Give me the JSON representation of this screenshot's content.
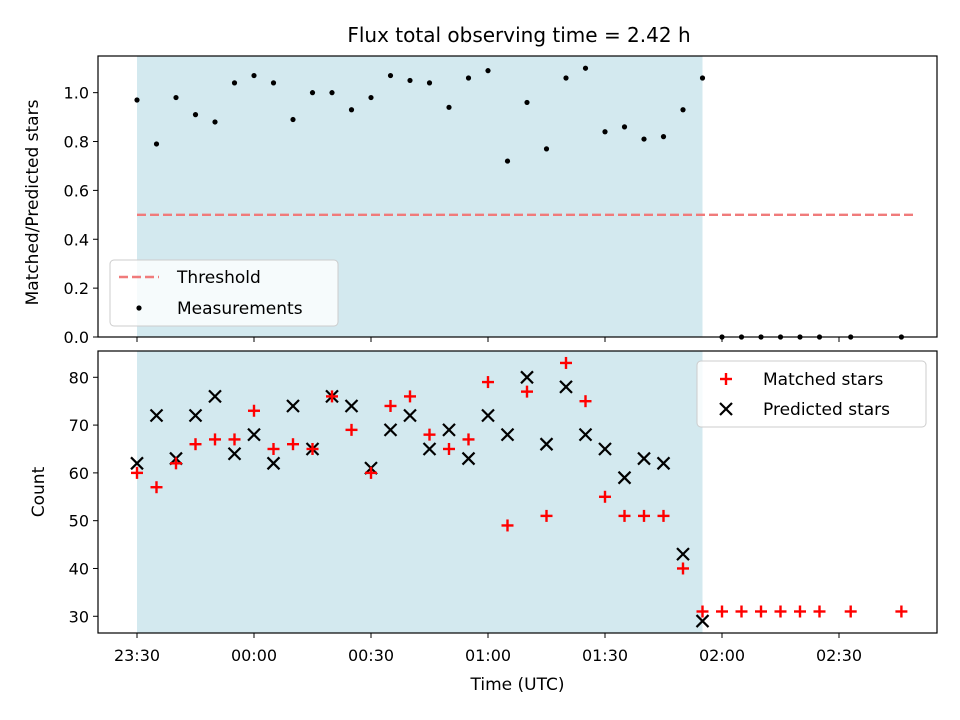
{
  "chart_data": {
    "type": "scatter",
    "title": "Flux total observing time = 2.42 h",
    "xlabel": "Time (UTC)",
    "x_tick_labels": [
      "23:30",
      "00:00",
      "00:30",
      "01:00",
      "01:30",
      "02:00",
      "02:30"
    ],
    "colors": {
      "shade": "#d3e9ef",
      "threshold": "#f07b7b",
      "matched": "#ff0000",
      "predicted": "#000000",
      "measurement": "#000000"
    },
    "top": {
      "ylabel": "Matched/Predicted stars",
      "ylim": [
        0,
        1.15
      ],
      "y_ticks": [
        "0.0",
        "0.2",
        "0.4",
        "0.6",
        "0.8",
        "1.0"
      ],
      "legend": [
        "Threshold",
        "Measurements"
      ],
      "legend_position": "lower-left",
      "threshold": 0.5,
      "threshold_start": "23:30",
      "threshold_end": "02:50",
      "measurements": [
        {
          "t": "23:30",
          "v": 0.97
        },
        {
          "t": "23:35",
          "v": 0.79
        },
        {
          "t": "23:40",
          "v": 0.98
        },
        {
          "t": "23:45",
          "v": 0.91
        },
        {
          "t": "23:50",
          "v": 0.88
        },
        {
          "t": "23:55",
          "v": 1.04
        },
        {
          "t": "00:00",
          "v": 1.07
        },
        {
          "t": "00:05",
          "v": 1.04
        },
        {
          "t": "00:10",
          "v": 0.89
        },
        {
          "t": "00:15",
          "v": 1.0
        },
        {
          "t": "00:20",
          "v": 1.0
        },
        {
          "t": "00:25",
          "v": 0.93
        },
        {
          "t": "00:30",
          "v": 0.98
        },
        {
          "t": "00:35",
          "v": 1.07
        },
        {
          "t": "00:40",
          "v": 1.05
        },
        {
          "t": "00:45",
          "v": 1.04
        },
        {
          "t": "00:50",
          "v": 0.94
        },
        {
          "t": "00:55",
          "v": 1.06
        },
        {
          "t": "01:00",
          "v": 1.09
        },
        {
          "t": "01:05",
          "v": 0.72
        },
        {
          "t": "01:10",
          "v": 0.96
        },
        {
          "t": "01:15",
          "v": 0.77
        },
        {
          "t": "01:20",
          "v": 1.06
        },
        {
          "t": "01:25",
          "v": 1.1
        },
        {
          "t": "01:30",
          "v": 0.84
        },
        {
          "t": "01:35",
          "v": 0.86
        },
        {
          "t": "01:40",
          "v": 0.81
        },
        {
          "t": "01:45",
          "v": 0.82
        },
        {
          "t": "01:50",
          "v": 0.93
        },
        {
          "t": "01:55",
          "v": 1.06
        },
        {
          "t": "02:00",
          "v": 0.0
        },
        {
          "t": "02:05",
          "v": 0.0
        },
        {
          "t": "02:10",
          "v": 0.0
        },
        {
          "t": "02:15",
          "v": 0.0
        },
        {
          "t": "02:20",
          "v": 0.0
        },
        {
          "t": "02:25",
          "v": 0.0
        },
        {
          "t": "02:33",
          "v": 0.0
        },
        {
          "t": "02:46",
          "v": 0.0
        }
      ]
    },
    "bottom": {
      "ylabel": "Count",
      "ylim": [
        26.5,
        85.5
      ],
      "y_ticks": [
        "30",
        "40",
        "50",
        "60",
        "70",
        "80"
      ],
      "legend": [
        "Matched stars",
        "Predicted stars"
      ],
      "legend_position": "upper-right",
      "matched": [
        {
          "t": "23:30",
          "v": 60
        },
        {
          "t": "23:35",
          "v": 57
        },
        {
          "t": "23:40",
          "v": 62
        },
        {
          "t": "23:45",
          "v": 66
        },
        {
          "t": "23:50",
          "v": 67
        },
        {
          "t": "23:55",
          "v": 67
        },
        {
          "t": "00:00",
          "v": 73
        },
        {
          "t": "00:05",
          "v": 65
        },
        {
          "t": "00:10",
          "v": 66
        },
        {
          "t": "00:15",
          "v": 65
        },
        {
          "t": "00:20",
          "v": 76
        },
        {
          "t": "00:25",
          "v": 69
        },
        {
          "t": "00:30",
          "v": 60
        },
        {
          "t": "00:35",
          "v": 74
        },
        {
          "t": "00:40",
          "v": 76
        },
        {
          "t": "00:45",
          "v": 68
        },
        {
          "t": "00:50",
          "v": 65
        },
        {
          "t": "00:55",
          "v": 67
        },
        {
          "t": "01:00",
          "v": 79
        },
        {
          "t": "01:05",
          "v": 49
        },
        {
          "t": "01:10",
          "v": 77
        },
        {
          "t": "01:15",
          "v": 51
        },
        {
          "t": "01:20",
          "v": 83
        },
        {
          "t": "01:25",
          "v": 75
        },
        {
          "t": "01:30",
          "v": 55
        },
        {
          "t": "01:35",
          "v": 51
        },
        {
          "t": "01:40",
          "v": 51
        },
        {
          "t": "01:45",
          "v": 51
        },
        {
          "t": "01:50",
          "v": 40
        },
        {
          "t": "01:55",
          "v": 31
        },
        {
          "t": "02:00",
          "v": 31
        },
        {
          "t": "02:05",
          "v": 31
        },
        {
          "t": "02:10",
          "v": 31
        },
        {
          "t": "02:15",
          "v": 31
        },
        {
          "t": "02:20",
          "v": 31
        },
        {
          "t": "02:25",
          "v": 31
        },
        {
          "t": "02:33",
          "v": 31
        },
        {
          "t": "02:46",
          "v": 31
        }
      ],
      "predicted": [
        {
          "t": "23:30",
          "v": 62
        },
        {
          "t": "23:35",
          "v": 72
        },
        {
          "t": "23:40",
          "v": 63
        },
        {
          "t": "23:45",
          "v": 72
        },
        {
          "t": "23:50",
          "v": 76
        },
        {
          "t": "23:55",
          "v": 64
        },
        {
          "t": "00:00",
          "v": 68
        },
        {
          "t": "00:05",
          "v": 62
        },
        {
          "t": "00:10",
          "v": 74
        },
        {
          "t": "00:15",
          "v": 65
        },
        {
          "t": "00:20",
          "v": 76
        },
        {
          "t": "00:25",
          "v": 74
        },
        {
          "t": "00:30",
          "v": 61
        },
        {
          "t": "00:35",
          "v": 69
        },
        {
          "t": "00:40",
          "v": 72
        },
        {
          "t": "00:45",
          "v": 65
        },
        {
          "t": "00:50",
          "v": 69
        },
        {
          "t": "00:55",
          "v": 63
        },
        {
          "t": "01:00",
          "v": 72
        },
        {
          "t": "01:05",
          "v": 68
        },
        {
          "t": "01:10",
          "v": 80
        },
        {
          "t": "01:15",
          "v": 66
        },
        {
          "t": "01:20",
          "v": 78
        },
        {
          "t": "01:25",
          "v": 68
        },
        {
          "t": "01:30",
          "v": 65
        },
        {
          "t": "01:35",
          "v": 59
        },
        {
          "t": "01:40",
          "v": 63
        },
        {
          "t": "01:45",
          "v": 62
        },
        {
          "t": "01:50",
          "v": 43
        },
        {
          "t": "01:55",
          "v": 29
        }
      ]
    }
  }
}
